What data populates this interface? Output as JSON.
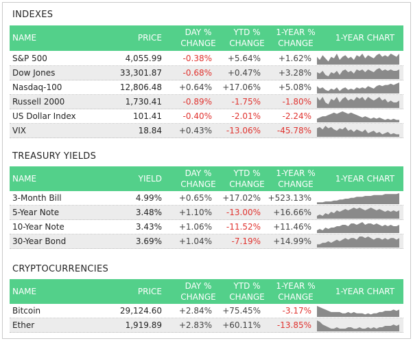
{
  "colors": {
    "header_bg": "#53d08a",
    "negative": "#e0322e",
    "spark": "#8a8a8a"
  },
  "sections": [
    {
      "title": "INDEXES",
      "headers": {
        "name": "NAME",
        "value": "PRICE",
        "day": "DAY % CHANGE",
        "ytd": "YTD % CHANGE",
        "year": "1-YEAR % CHANGE",
        "chart": "1-YEAR CHART"
      },
      "rows": [
        {
          "name": "S&P 500",
          "value": "4,055.99",
          "day": "-0.38%",
          "ytd": "+5.64%",
          "year": "+1.62%",
          "trend": [
            6,
            4,
            7,
            5,
            3,
            6,
            5,
            8,
            4,
            6,
            7,
            5,
            6,
            4,
            7,
            6,
            8,
            5,
            7,
            6,
            5,
            7,
            8,
            6,
            7,
            6,
            8,
            7,
            6,
            8
          ]
        },
        {
          "name": "Dow Jones",
          "value": "33,301.87",
          "day": "-0.68%",
          "ytd": "+0.47%",
          "year": "+3.28%",
          "trend": [
            6,
            5,
            7,
            4,
            3,
            6,
            5,
            7,
            4,
            7,
            8,
            6,
            7,
            5,
            8,
            7,
            8,
            6,
            8,
            7,
            6,
            8,
            9,
            7,
            8,
            7,
            8,
            7,
            7,
            8
          ]
        },
        {
          "name": "Nasdaq-100",
          "value": "12,806.48",
          "day": "+0.64%",
          "ytd": "+17.06%",
          "year": "+5.08%",
          "trend": [
            7,
            5,
            6,
            4,
            3,
            5,
            4,
            6,
            3,
            5,
            6,
            4,
            5,
            4,
            6,
            5,
            6,
            5,
            7,
            6,
            5,
            7,
            8,
            7,
            8,
            8,
            9,
            8,
            9,
            10
          ]
        },
        {
          "name": "Russell 2000",
          "value": "1,730.41",
          "day": "-0.89%",
          "ytd": "-1.75%",
          "year": "-1.80%",
          "trend": [
            7,
            5,
            7,
            4,
            3,
            6,
            5,
            7,
            4,
            6,
            7,
            5,
            6,
            5,
            7,
            6,
            7,
            5,
            7,
            6,
            5,
            6,
            7,
            5,
            6,
            4,
            5,
            4,
            4,
            5
          ]
        },
        {
          "name": "US Dollar Index",
          "value": "101.41",
          "day": "-0.40%",
          "ytd": "-2.01%",
          "year": "-2.24%",
          "trend": [
            4,
            5,
            6,
            6,
            7,
            8,
            9,
            8,
            9,
            10,
            9,
            8,
            9,
            8,
            7,
            6,
            5,
            6,
            5,
            4,
            5,
            4,
            5,
            4,
            3,
            4,
            3,
            4,
            3,
            3
          ]
        },
        {
          "name": "VIX",
          "value": "18.84",
          "day": "+0.43%",
          "ytd": "-13.06%",
          "year": "-45.78%",
          "trend": [
            7,
            8,
            6,
            9,
            7,
            8,
            6,
            5,
            7,
            6,
            8,
            5,
            6,
            4,
            6,
            5,
            4,
            6,
            3,
            4,
            5,
            3,
            4,
            2,
            3,
            4,
            2,
            3,
            2,
            2
          ]
        }
      ]
    },
    {
      "title": "TREASURY YIELDS",
      "headers": {
        "name": "NAME",
        "value": "YIELD",
        "day": "DAY % CHANGE",
        "ytd": "YTD % CHANGE",
        "year": "1-YEAR % CHANGE",
        "chart": "1-YEAR CHART"
      },
      "rows": [
        {
          "name": "3-Month Bill",
          "value": "4.99%",
          "day": "+0.65%",
          "ytd": "+17.02%",
          "year": "+523.13%",
          "trend": [
            1,
            1,
            1,
            2,
            2,
            2,
            3,
            3,
            4,
            4,
            5,
            5,
            6,
            6,
            7,
            7,
            7,
            8,
            8,
            8,
            9,
            9,
            9,
            9,
            10,
            10,
            10,
            10,
            10,
            11
          ]
        },
        {
          "name": "5-Year Note",
          "value": "3.48%",
          "day": "+1.10%",
          "ytd": "-13.00%",
          "year": "+16.66%",
          "trend": [
            3,
            4,
            3,
            5,
            4,
            6,
            5,
            7,
            6,
            7,
            8,
            7,
            8,
            9,
            8,
            9,
            8,
            7,
            8,
            9,
            8,
            7,
            8,
            7,
            6,
            7,
            6,
            7,
            6,
            7
          ]
        },
        {
          "name": "10-Year Note",
          "value": "3.43%",
          "day": "+1.06%",
          "ytd": "-11.52%",
          "year": "+11.46%",
          "trend": [
            3,
            4,
            3,
            5,
            4,
            5,
            5,
            6,
            6,
            7,
            7,
            6,
            8,
            8,
            7,
            8,
            9,
            7,
            8,
            8,
            7,
            8,
            7,
            6,
            7,
            6,
            7,
            6,
            6,
            7
          ]
        },
        {
          "name": "30-Year Bond",
          "value": "3.69%",
          "day": "+1.04%",
          "ytd": "-7.19%",
          "year": "+14.99%",
          "trend": [
            3,
            3,
            4,
            4,
            5,
            4,
            5,
            6,
            5,
            6,
            7,
            6,
            7,
            7,
            6,
            8,
            8,
            7,
            8,
            7,
            6,
            7,
            7,
            6,
            7,
            6,
            7,
            7,
            6,
            7
          ]
        }
      ]
    },
    {
      "title": "CRYPTOCURRENCIES",
      "headers": {
        "name": "NAME",
        "value": "PRICE",
        "day": "DAY % CHANGE",
        "ytd": "YTD % CHANGE",
        "year": "1-YEAR % CHANGE",
        "chart": "1-YEAR CHART"
      },
      "rows": [
        {
          "name": "Bitcoin",
          "value": "29,124.60",
          "day": "+2.84%",
          "ytd": "+75.45%",
          "year": "-3.17%",
          "trend": [
            9,
            8,
            7,
            6,
            5,
            4,
            4,
            4,
            4,
            3,
            3,
            4,
            3,
            4,
            3,
            3,
            3,
            2,
            3,
            2,
            3,
            3,
            4,
            4,
            5,
            5,
            5,
            6,
            5,
            6
          ]
        },
        {
          "name": "Ether",
          "value": "1,919.89",
          "day": "+2.83%",
          "ytd": "+60.11%",
          "year": "-13.85%",
          "trend": [
            9,
            8,
            6,
            5,
            4,
            3,
            3,
            4,
            3,
            3,
            3,
            4,
            4,
            3,
            3,
            4,
            3,
            3,
            4,
            3,
            4,
            3,
            4,
            4,
            5,
            5,
            5,
            6,
            5,
            6
          ]
        }
      ]
    }
  ]
}
